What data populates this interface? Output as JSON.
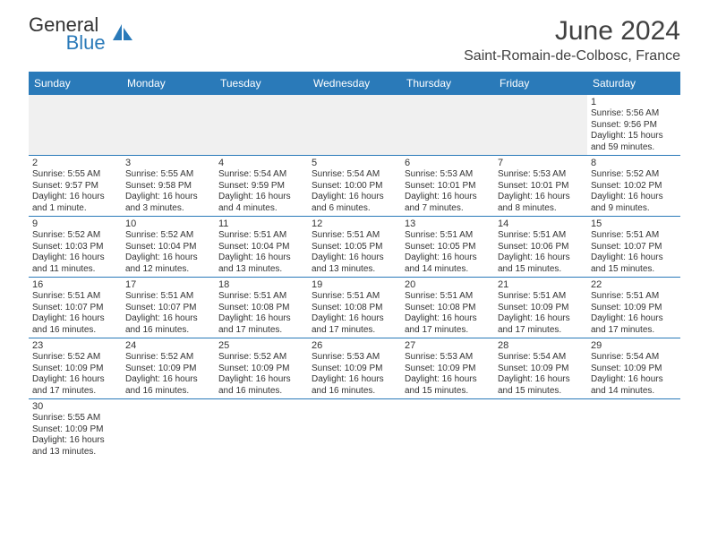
{
  "brand": {
    "part1": "General",
    "part2": "Blue"
  },
  "title": "June 2024",
  "location": "Saint-Romain-de-Colbosc, France",
  "colors": {
    "header_bg": "#2a7ab9",
    "header_text": "#ffffff",
    "text": "#333333",
    "row_border": "#2a7ab9",
    "blank_bg": "#f0f0f0"
  },
  "dayHeaders": [
    "Sunday",
    "Monday",
    "Tuesday",
    "Wednesday",
    "Thursday",
    "Friday",
    "Saturday"
  ],
  "weeks": [
    [
      null,
      null,
      null,
      null,
      null,
      null,
      {
        "n": "1",
        "sr": "5:56 AM",
        "ss": "9:56 PM",
        "dl": "15 hours and 59 minutes."
      }
    ],
    [
      {
        "n": "2",
        "sr": "5:55 AM",
        "ss": "9:57 PM",
        "dl": "16 hours and 1 minute."
      },
      {
        "n": "3",
        "sr": "5:55 AM",
        "ss": "9:58 PM",
        "dl": "16 hours and 3 minutes."
      },
      {
        "n": "4",
        "sr": "5:54 AM",
        "ss": "9:59 PM",
        "dl": "16 hours and 4 minutes."
      },
      {
        "n": "5",
        "sr": "5:54 AM",
        "ss": "10:00 PM",
        "dl": "16 hours and 6 minutes."
      },
      {
        "n": "6",
        "sr": "5:53 AM",
        "ss": "10:01 PM",
        "dl": "16 hours and 7 minutes."
      },
      {
        "n": "7",
        "sr": "5:53 AM",
        "ss": "10:01 PM",
        "dl": "16 hours and 8 minutes."
      },
      {
        "n": "8",
        "sr": "5:52 AM",
        "ss": "10:02 PM",
        "dl": "16 hours and 9 minutes."
      }
    ],
    [
      {
        "n": "9",
        "sr": "5:52 AM",
        "ss": "10:03 PM",
        "dl": "16 hours and 11 minutes."
      },
      {
        "n": "10",
        "sr": "5:52 AM",
        "ss": "10:04 PM",
        "dl": "16 hours and 12 minutes."
      },
      {
        "n": "11",
        "sr": "5:51 AM",
        "ss": "10:04 PM",
        "dl": "16 hours and 13 minutes."
      },
      {
        "n": "12",
        "sr": "5:51 AM",
        "ss": "10:05 PM",
        "dl": "16 hours and 13 minutes."
      },
      {
        "n": "13",
        "sr": "5:51 AM",
        "ss": "10:05 PM",
        "dl": "16 hours and 14 minutes."
      },
      {
        "n": "14",
        "sr": "5:51 AM",
        "ss": "10:06 PM",
        "dl": "16 hours and 15 minutes."
      },
      {
        "n": "15",
        "sr": "5:51 AM",
        "ss": "10:07 PM",
        "dl": "16 hours and 15 minutes."
      }
    ],
    [
      {
        "n": "16",
        "sr": "5:51 AM",
        "ss": "10:07 PM",
        "dl": "16 hours and 16 minutes."
      },
      {
        "n": "17",
        "sr": "5:51 AM",
        "ss": "10:07 PM",
        "dl": "16 hours and 16 minutes."
      },
      {
        "n": "18",
        "sr": "5:51 AM",
        "ss": "10:08 PM",
        "dl": "16 hours and 17 minutes."
      },
      {
        "n": "19",
        "sr": "5:51 AM",
        "ss": "10:08 PM",
        "dl": "16 hours and 17 minutes."
      },
      {
        "n": "20",
        "sr": "5:51 AM",
        "ss": "10:08 PM",
        "dl": "16 hours and 17 minutes."
      },
      {
        "n": "21",
        "sr": "5:51 AM",
        "ss": "10:09 PM",
        "dl": "16 hours and 17 minutes."
      },
      {
        "n": "22",
        "sr": "5:51 AM",
        "ss": "10:09 PM",
        "dl": "16 hours and 17 minutes."
      }
    ],
    [
      {
        "n": "23",
        "sr": "5:52 AM",
        "ss": "10:09 PM",
        "dl": "16 hours and 17 minutes."
      },
      {
        "n": "24",
        "sr": "5:52 AM",
        "ss": "10:09 PM",
        "dl": "16 hours and 16 minutes."
      },
      {
        "n": "25",
        "sr": "5:52 AM",
        "ss": "10:09 PM",
        "dl": "16 hours and 16 minutes."
      },
      {
        "n": "26",
        "sr": "5:53 AM",
        "ss": "10:09 PM",
        "dl": "16 hours and 16 minutes."
      },
      {
        "n": "27",
        "sr": "5:53 AM",
        "ss": "10:09 PM",
        "dl": "16 hours and 15 minutes."
      },
      {
        "n": "28",
        "sr": "5:54 AM",
        "ss": "10:09 PM",
        "dl": "16 hours and 15 minutes."
      },
      {
        "n": "29",
        "sr": "5:54 AM",
        "ss": "10:09 PM",
        "dl": "16 hours and 14 minutes."
      }
    ],
    [
      {
        "n": "30",
        "sr": "5:55 AM",
        "ss": "10:09 PM",
        "dl": "16 hours and 13 minutes."
      },
      null,
      null,
      null,
      null,
      null,
      null
    ]
  ],
  "labels": {
    "sunrise": "Sunrise: ",
    "sunset": "Sunset: ",
    "daylight": "Daylight: "
  }
}
